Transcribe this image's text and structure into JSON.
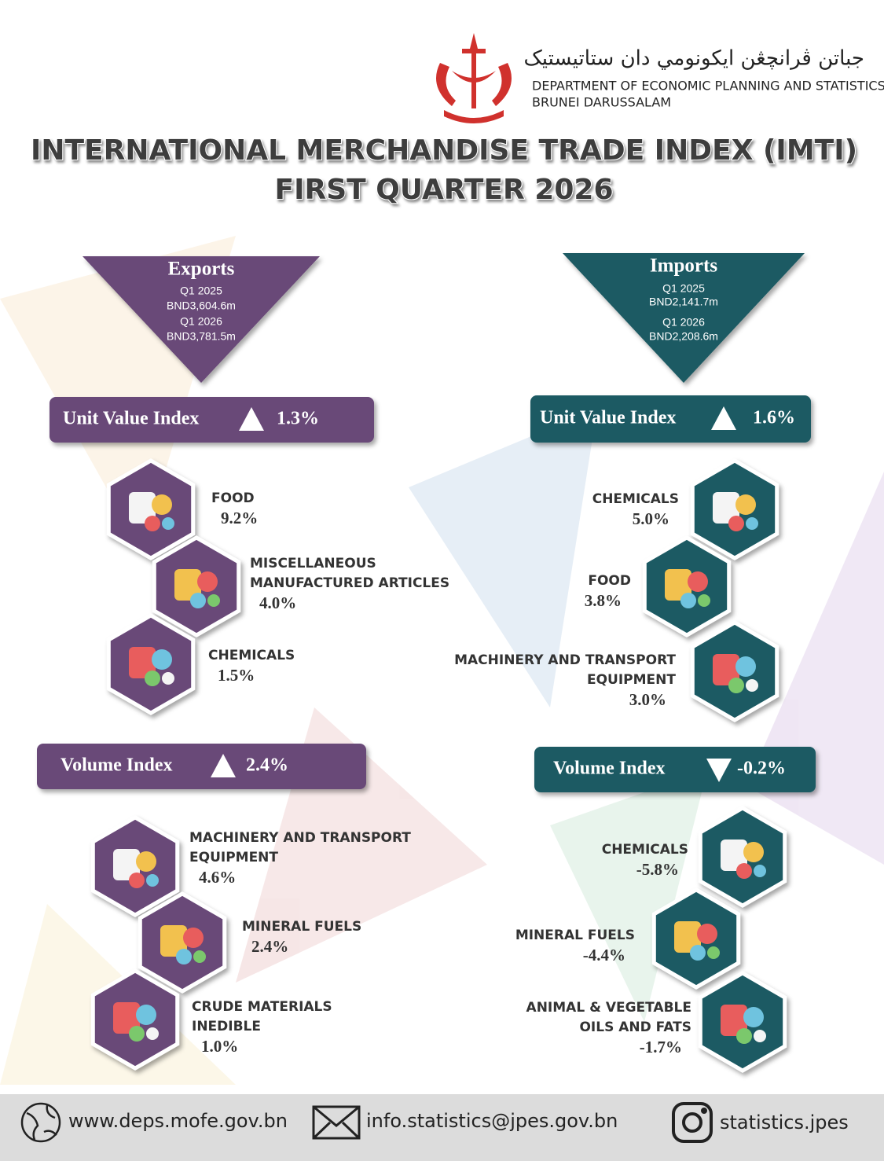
{
  "header": {
    "arabic_name": "جباتن ڤرانچڠن ايكونومي دان ستاتيستيک",
    "department": "DEPARTMENT OF ECONOMIC PLANNING AND STATISTICS",
    "country": "BRUNEI DARUSSALAM"
  },
  "title": {
    "line1": "INTERNATIONAL MERCHANDISE TRADE INDEX (IMTI)",
    "line2": "FIRST QUARTER 2026"
  },
  "exports": {
    "heading": "Exports",
    "periods": [
      {
        "period": "Q1 2025",
        "value": "BND3,604.6m"
      },
      {
        "period": "Q1 2026",
        "value": "BND3,781.5m"
      }
    ],
    "unit_value_index": {
      "label": "Unit Value Index",
      "direction": "up",
      "change": "1.3%",
      "items": [
        {
          "lines": [
            "FOOD"
          ],
          "change": "9.2%"
        },
        {
          "lines": [
            "MISCELLANEOUS",
            "MANUFACTURED ARTICLES"
          ],
          "change": "4.0%"
        },
        {
          "lines": [
            "CHEMICALS"
          ],
          "change": "1.5%"
        }
      ]
    },
    "volume_index": {
      "label": "Volume Index",
      "direction": "up",
      "change": "2.4%",
      "items": [
        {
          "lines": [
            "MACHINERY AND TRANSPORT",
            "EQUIPMENT"
          ],
          "change": "4.6%"
        },
        {
          "lines": [
            "MINERAL FUELS"
          ],
          "change": "2.4%"
        },
        {
          "lines": [
            "CRUDE MATERIALS",
            "INEDIBLE"
          ],
          "change": "1.0%"
        }
      ]
    }
  },
  "imports": {
    "heading": "Imports",
    "periods": [
      {
        "period": "Q1 2025",
        "value": "BND2,141.7m"
      },
      {
        "period": "Q1 2026",
        "value": "BND2,208.6m"
      }
    ],
    "unit_value_index": {
      "label": "Unit Value Index",
      "direction": "up",
      "change": "1.6%",
      "items": [
        {
          "lines": [
            "CHEMICALS"
          ],
          "change": "5.0%"
        },
        {
          "lines": [
            "FOOD"
          ],
          "change": "3.8%"
        },
        {
          "lines": [
            "MACHINERY AND TRANSPORT",
            "EQUIPMENT"
          ],
          "change": "3.0%"
        }
      ]
    },
    "volume_index": {
      "label": "Volume Index",
      "direction": "down",
      "change": "-0.2%",
      "items": [
        {
          "lines": [
            "CHEMICALS"
          ],
          "change": "-5.8%"
        },
        {
          "lines": [
            "MINERAL FUELS"
          ],
          "change": "-4.4%"
        },
        {
          "lines": [
            "ANIMAL & VEGETABLE",
            "OILS AND FATS"
          ],
          "change": "-1.7%"
        }
      ]
    }
  },
  "footer": {
    "website": "www.deps.mofe.gov.bn",
    "email": "info.statistics@jpes.gov.bn",
    "instagram": "statistics.jpes"
  }
}
